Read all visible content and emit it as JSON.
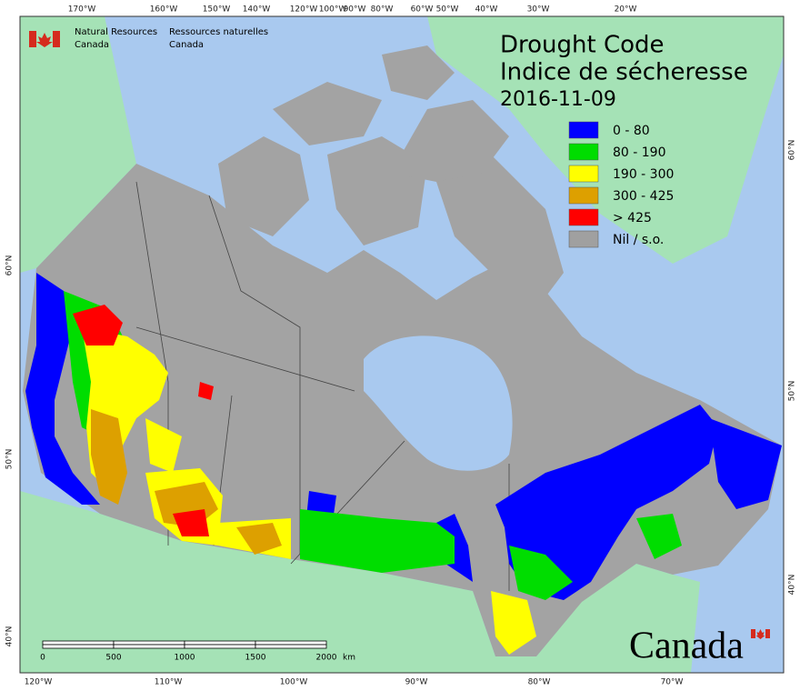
{
  "agency": {
    "en_line1": "Natural Resources",
    "en_line2": "Canada",
    "fr_line1": "Ressources naturelles",
    "fr_line2": "Canada"
  },
  "title": {
    "en": "Drought Code",
    "fr": "Indice de sécheresse",
    "date": "2016-11-09"
  },
  "legend": [
    {
      "label": "0 - 80",
      "color": "#0000ff"
    },
    {
      "label": "80 - 190",
      "color": "#00dd00"
    },
    {
      "label": "190 - 300",
      "color": "#ffff00"
    },
    {
      "label": "300 - 425",
      "color": "#dda000"
    },
    {
      "label": "> 425",
      "color": "#ff0000"
    },
    {
      "label": "Nil / s.o.",
      "color": "#a0a0a0"
    }
  ],
  "graticule": {
    "top": [
      "170°W",
      "160°W",
      "150°W",
      "140°W",
      "120°W",
      "100°W",
      "90°W",
      "80°W",
      "60°W",
      "50°W",
      "40°W",
      "30°W",
      "20°W"
    ],
    "bottom": [
      "120°W",
      "110°W",
      "100°W",
      "90°W",
      "80°W",
      "70°W"
    ],
    "left": [
      "60°N",
      "50°N",
      "40°N"
    ],
    "right": [
      "60°N",
      "50°N",
      "40°N"
    ]
  },
  "scale_bar": {
    "labels": [
      "0",
      "500",
      "1000",
      "1500",
      "2000"
    ],
    "unit": "km"
  },
  "wordmark": "Canada"
}
